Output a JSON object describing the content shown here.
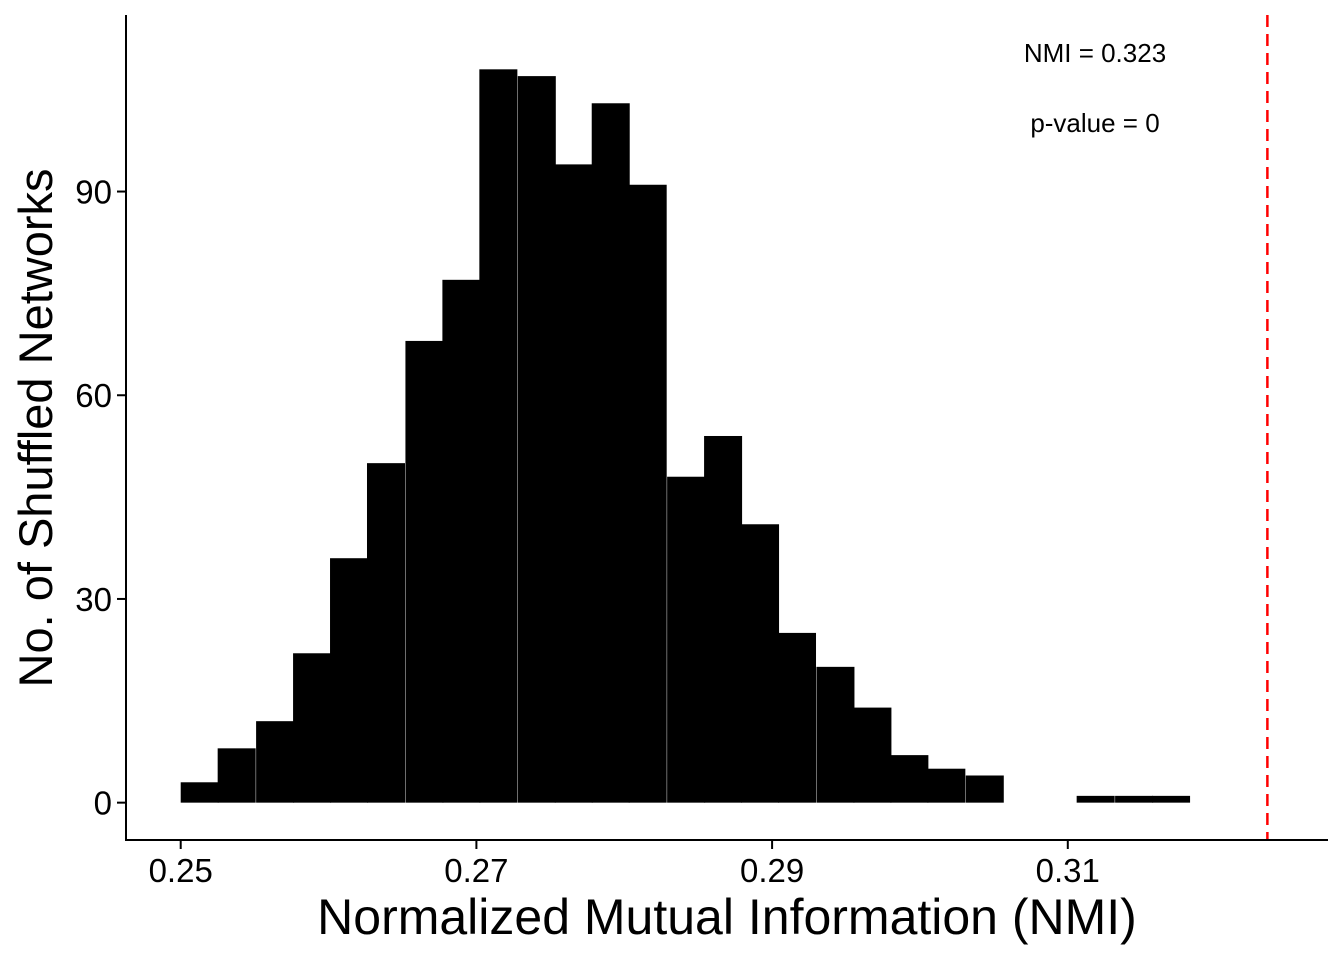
{
  "chart_data": {
    "type": "bar",
    "xlabel": "Normalized Mutual Information (NMI)",
    "ylabel": "No. of Shuffled Networks",
    "xlim": [
      0.2463,
      0.3276
    ],
    "ylim": [
      -5.5,
      116
    ],
    "x_ticks": [
      {
        "value": 0.25,
        "label": "0.25"
      },
      {
        "value": 0.27,
        "label": "0.27"
      },
      {
        "value": 0.29,
        "label": "0.29"
      },
      {
        "value": 0.31,
        "label": "0.31"
      }
    ],
    "y_ticks": [
      {
        "value": 0,
        "label": "0"
      },
      {
        "value": 30,
        "label": "30"
      },
      {
        "value": 60,
        "label": "60"
      },
      {
        "value": 90,
        "label": "90"
      }
    ],
    "bin_width": 0.00253,
    "bins": [
      {
        "x0": 0.25,
        "count": 3
      },
      {
        "x0": 0.2525,
        "count": 8
      },
      {
        "x0": 0.2551,
        "count": 12
      },
      {
        "x0": 0.2576,
        "count": 22
      },
      {
        "x0": 0.2601,
        "count": 36
      },
      {
        "x0": 0.2626,
        "count": 50
      },
      {
        "x0": 0.2652,
        "count": 68
      },
      {
        "x0": 0.2677,
        "count": 77
      },
      {
        "x0": 0.2702,
        "count": 108
      },
      {
        "x0": 0.2728,
        "count": 107
      },
      {
        "x0": 0.2753,
        "count": 94
      },
      {
        "x0": 0.2778,
        "count": 103
      },
      {
        "x0": 0.2803,
        "count": 91
      },
      {
        "x0": 0.2829,
        "count": 48
      },
      {
        "x0": 0.2854,
        "count": 54
      },
      {
        "x0": 0.2879,
        "count": 41
      },
      {
        "x0": 0.2904,
        "count": 25
      },
      {
        "x0": 0.293,
        "count": 20
      },
      {
        "x0": 0.2955,
        "count": 14
      },
      {
        "x0": 0.298,
        "count": 7
      },
      {
        "x0": 0.3005,
        "count": 5
      },
      {
        "x0": 0.3031,
        "count": 4
      },
      {
        "x0": 0.3056,
        "count": 0
      },
      {
        "x0": 0.3081,
        "count": 0
      },
      {
        "x0": 0.3106,
        "count": 1
      },
      {
        "x0": 0.3132,
        "count": 1
      },
      {
        "x0": 0.3157,
        "count": 1
      }
    ],
    "bar_color": "#000000",
    "reference_line": {
      "x": 0.3235,
      "color": "#ff0000",
      "style": "dashed"
    },
    "annotations": {
      "nmi": "NMI = 0.323",
      "pvalue": "p-value = 0"
    },
    "grid": false,
    "legend": "none"
  }
}
